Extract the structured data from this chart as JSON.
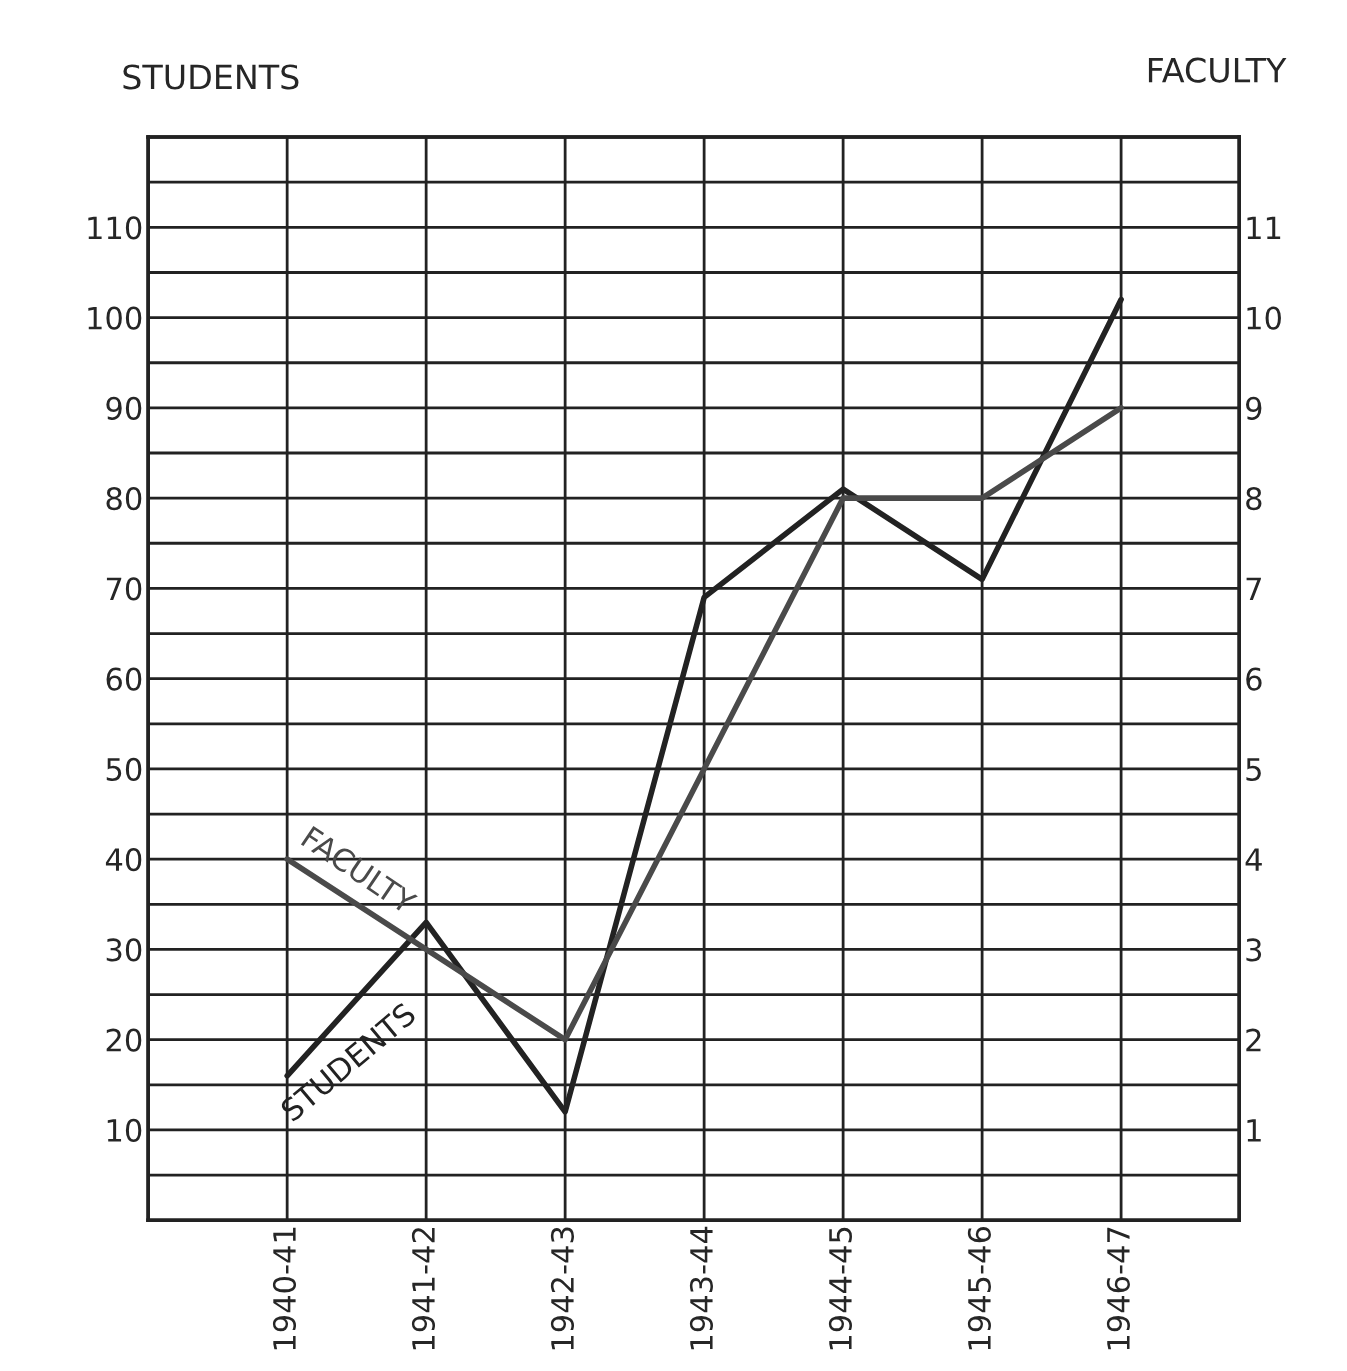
{
  "chart_data": {
    "type": "line",
    "categories": [
      "1940-41",
      "1941-42",
      "1942-43",
      "1943-44",
      "1944-45",
      "1945-46",
      "1946-47"
    ],
    "ylabel": "STUDENTS",
    "y2label": "FACULTY",
    "series": [
      {
        "name": "STUDENTS",
        "color": "#222222",
        "values": [
          16,
          33,
          12,
          69,
          81,
          71,
          102
        ]
      },
      {
        "name": "FACULTY",
        "color": "#4a4a4a",
        "axis": "y2",
        "values": [
          4,
          3,
          2,
          5,
          8,
          8,
          9
        ]
      }
    ],
    "ylim": [
      0,
      120
    ],
    "yticks": [
      {
        "value": 5,
        "label": null
      },
      10,
      {
        "value": 15,
        "label": null
      },
      20,
      {
        "value": 25,
        "label": null
      },
      30,
      {
        "value": 35,
        "label": null
      },
      40,
      {
        "value": 45,
        "label": null
      },
      50,
      {
        "value": 55,
        "label": null
      },
      60,
      {
        "value": 65,
        "label": null
      },
      70,
      {
        "value": 75,
        "label": null
      },
      80,
      {
        "value": 85,
        "label": null
      },
      90,
      {
        "value": 95,
        "label": null
      },
      100,
      {
        "value": 105,
        "label": null
      },
      110,
      {
        "value": 115,
        "label": null
      }
    ],
    "y2lim": [
      0,
      12
    ],
    "y2ticks": [
      1,
      2,
      3,
      4,
      5,
      6,
      7,
      8,
      9,
      10,
      11
    ],
    "grid": true,
    "legend": false,
    "marker": "none",
    "line_style": "solid"
  }
}
